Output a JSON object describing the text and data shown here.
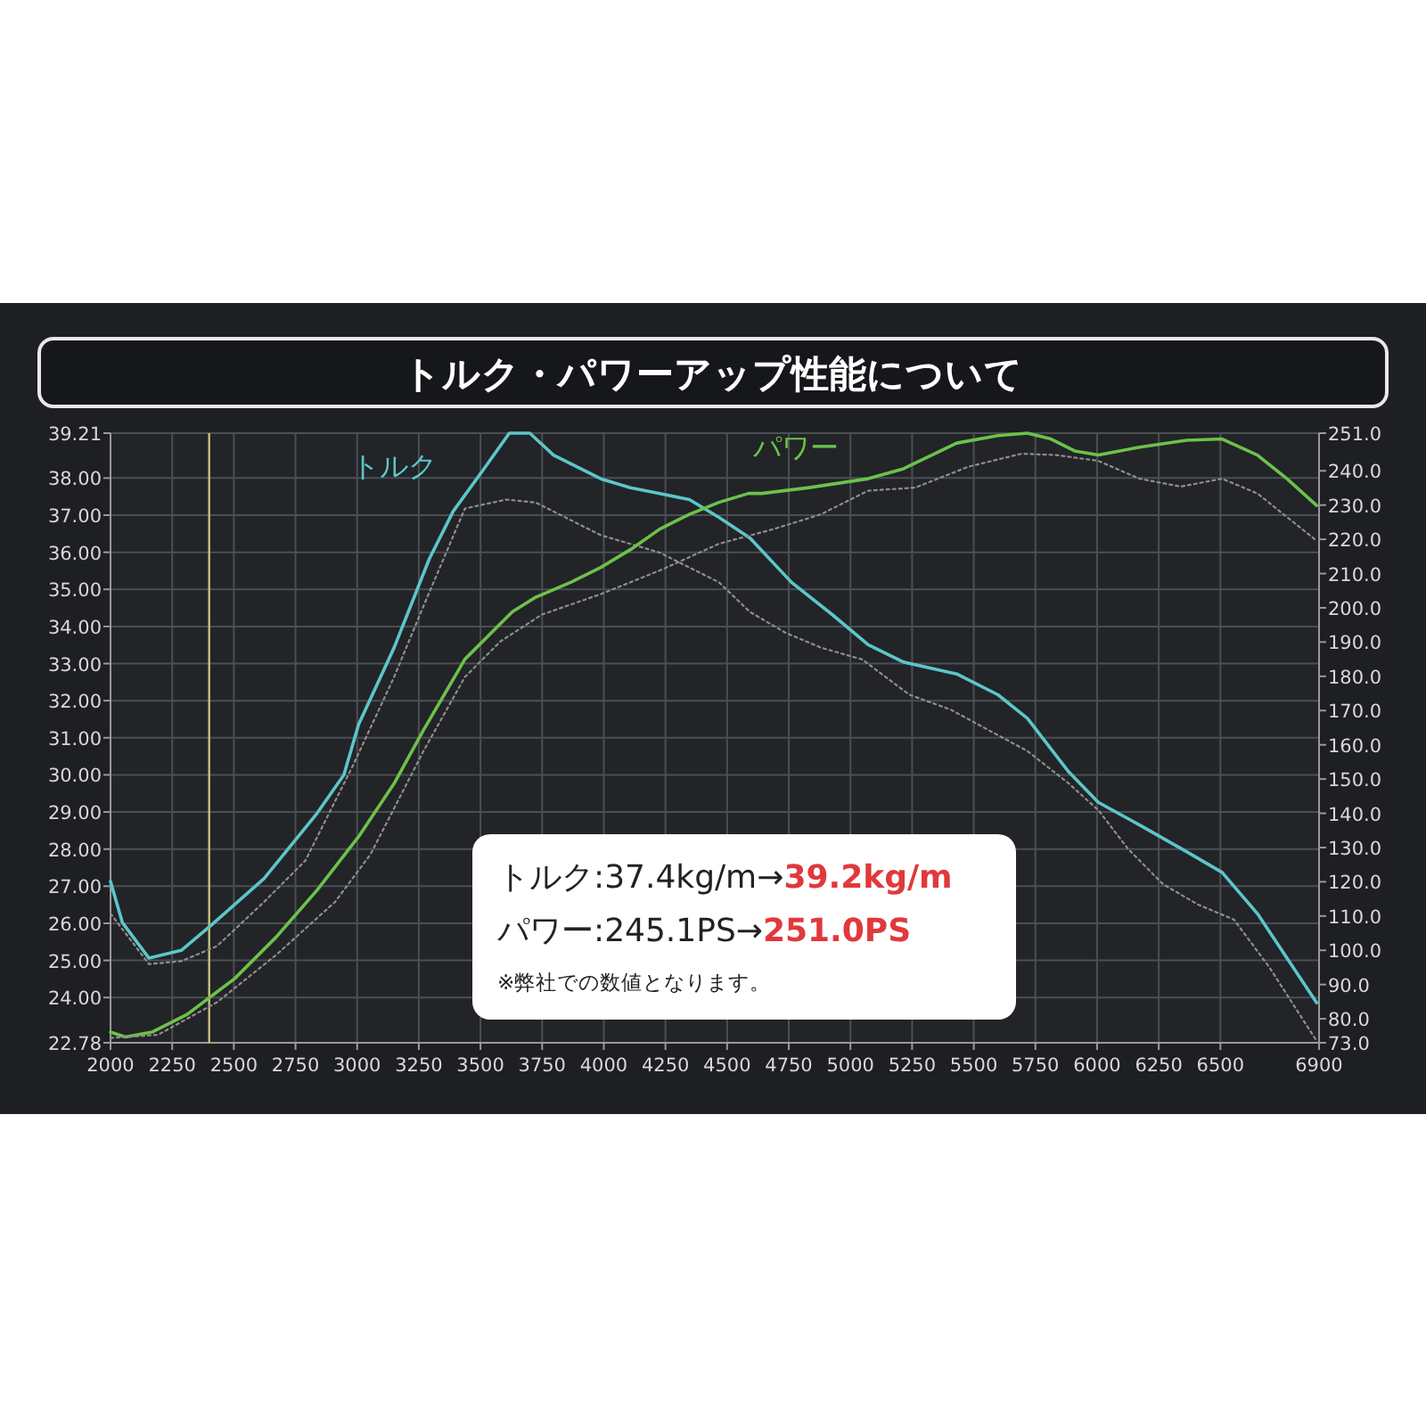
{
  "chart_data": {
    "type": "line",
    "title": "トルク・パワーアップ性能について",
    "xlim": [
      2000,
      6900
    ],
    "xticks": [
      2000,
      2250,
      2500,
      2750,
      3000,
      3250,
      3500,
      3750,
      4000,
      4250,
      4500,
      4750,
      5000,
      5250,
      5500,
      5750,
      6000,
      6250,
      6500,
      6900
    ],
    "ylim": [
      22.78,
      39.21
    ],
    "yticks": [
      {
        "value": 22.78,
        "label": "22.78"
      },
      {
        "value": 24,
        "label": "24.00"
      },
      {
        "value": 25,
        "label": "25.00"
      },
      {
        "value": 26,
        "label": "26.00"
      },
      {
        "value": 27,
        "label": "27.00"
      },
      {
        "value": 28,
        "label": "28.00"
      },
      {
        "value": 29,
        "label": "29.00"
      },
      {
        "value": 30,
        "label": "30.00"
      },
      {
        "value": 31,
        "label": "31.00"
      },
      {
        "value": 32,
        "label": "32.00"
      },
      {
        "value": 33,
        "label": "33.00"
      },
      {
        "value": 34,
        "label": "34.00"
      },
      {
        "value": 35,
        "label": "35.00"
      },
      {
        "value": 36,
        "label": "36.00"
      },
      {
        "value": 37,
        "label": "37.00"
      },
      {
        "value": 38,
        "label": "38.00"
      },
      {
        "value": 39.21,
        "label": "39.21"
      }
    ],
    "y2lim": [
      73,
      251
    ],
    "y2ticks": [
      {
        "value": 73,
        "label": "73.0"
      },
      {
        "value": 80,
        "label": "80.0"
      },
      {
        "value": 90,
        "label": "90.0"
      },
      {
        "value": 100,
        "label": "100.0"
      },
      {
        "value": 110,
        "label": "110.0"
      },
      {
        "value": 120,
        "label": "120.0"
      },
      {
        "value": 130,
        "label": "130.0"
      },
      {
        "value": 140,
        "label": "140.0"
      },
      {
        "value": 150,
        "label": "150.0"
      },
      {
        "value": 160,
        "label": "160.0"
      },
      {
        "value": 170,
        "label": "170.0"
      },
      {
        "value": 180,
        "label": "180.0"
      },
      {
        "value": 190,
        "label": "190.0"
      },
      {
        "value": 200,
        "label": "200.0"
      },
      {
        "value": 210,
        "label": "210.0"
      },
      {
        "value": 220,
        "label": "220.0"
      },
      {
        "value": 230,
        "label": "230.0"
      },
      {
        "value": 240,
        "label": "240.0"
      },
      {
        "value": 251,
        "label": "251.0"
      }
    ],
    "grid": true,
    "series": [
      {
        "name": "トルク",
        "color": "#5cc6c9",
        "line_style": "solid",
        "x": [
          2000,
          2048,
          2156,
          2287,
          2407,
          2623,
          2838,
          2946,
          3006,
          3150,
          3293,
          3389,
          3509,
          3617,
          3700,
          3796,
          3988,
          4108,
          4227,
          4347,
          4467,
          4593,
          4761,
          4928,
          5072,
          5215,
          5431,
          5598,
          5718,
          5885,
          6005,
          6172,
          6363,
          6507,
          6650,
          6890
        ],
        "values": [
          27.13,
          26.02,
          25.06,
          25.27,
          25.94,
          27.21,
          28.97,
          30.0,
          31.36,
          33.43,
          35.83,
          37.1,
          38.2,
          39.21,
          39.21,
          38.62,
          37.98,
          37.74,
          37.58,
          37.42,
          36.94,
          36.38,
          35.19,
          34.31,
          33.51,
          33.04,
          32.72,
          32.16,
          31.52,
          30.08,
          29.26,
          28.65,
          27.93,
          27.37,
          26.26,
          23.86
        ]
      },
      {
        "color": "#8e8e8e",
        "line_style": "dotted",
        "x": [
          2000,
          2156,
          2287,
          2431,
          2623,
          2790,
          2982,
          3150,
          3269,
          3437,
          3605,
          3724,
          3988,
          4227,
          4467,
          4593,
          4737,
          4880,
          5048,
          5239,
          5406,
          5718,
          5885,
          6005,
          6125,
          6268,
          6411,
          6555,
          6698,
          6890
        ],
        "values": [
          26.26,
          24.9,
          24.98,
          25.38,
          26.58,
          27.69,
          30.24,
          32.64,
          34.55,
          37.18,
          37.42,
          37.34,
          36.46,
          35.99,
          35.19,
          34.39,
          33.83,
          33.43,
          33.11,
          32.16,
          31.76,
          30.64,
          29.77,
          29.05,
          28.01,
          27.05,
          26.5,
          26.1,
          24.82,
          22.83
        ]
      },
      {
        "name": "パワー",
        "color": "#6cc24a",
        "line_style": "solid",
        "axis": "y2",
        "x": [
          2000,
          2060,
          2168,
          2311,
          2503,
          2671,
          2838,
          3006,
          3150,
          3269,
          3437,
          3629,
          3724,
          3868,
          3988,
          4108,
          4227,
          4347,
          4467,
          4587,
          4641,
          4832,
          5072,
          5215,
          5431,
          5598,
          5718,
          5813,
          5909,
          6005,
          6172,
          6363,
          6507,
          6650,
          6770,
          6890
        ],
        "values": [
          76.1,
          74.7,
          76.1,
          81.3,
          91.7,
          103.8,
          117.6,
          133.2,
          148.7,
          164.3,
          185.0,
          198.8,
          203.1,
          207.5,
          211.8,
          217.0,
          223.0,
          227.3,
          230.8,
          233.4,
          233.4,
          235.1,
          237.7,
          240.6,
          248.1,
          250.3,
          251.0,
          249.3,
          245.8,
          244.6,
          246.9,
          248.9,
          249.3,
          244.6,
          237.7,
          229.9
        ]
      },
      {
        "color": "#8e8e8e",
        "line_style": "dotted",
        "axis": "y2",
        "x": [
          2000,
          2192,
          2431,
          2671,
          2910,
          3054,
          3269,
          3437,
          3581,
          3748,
          3988,
          4227,
          4467,
          4689,
          4880,
          5072,
          5263,
          5478,
          5694,
          5837,
          6005,
          6172,
          6339,
          6507,
          6650,
          6890
        ],
        "values": [
          74.4,
          75.3,
          84.8,
          98.6,
          114.1,
          128.0,
          158.2,
          179.8,
          190.2,
          198.0,
          204.0,
          210.9,
          218.7,
          223.0,
          227.3,
          234.2,
          235.1,
          241.2,
          245.0,
          244.6,
          242.9,
          237.7,
          235.4,
          237.7,
          233.4,
          219.6
        ]
      }
    ],
    "ref_lines": [
      {
        "axis": "x",
        "value": 2400,
        "color": "#c9c27a"
      }
    ],
    "annotations": [
      "トルク:37.4kg/m→",
      "39.2kg/m",
      "パワー:245.1PS→",
      "251.0PS",
      "※弊社での数値となります。"
    ]
  }
}
